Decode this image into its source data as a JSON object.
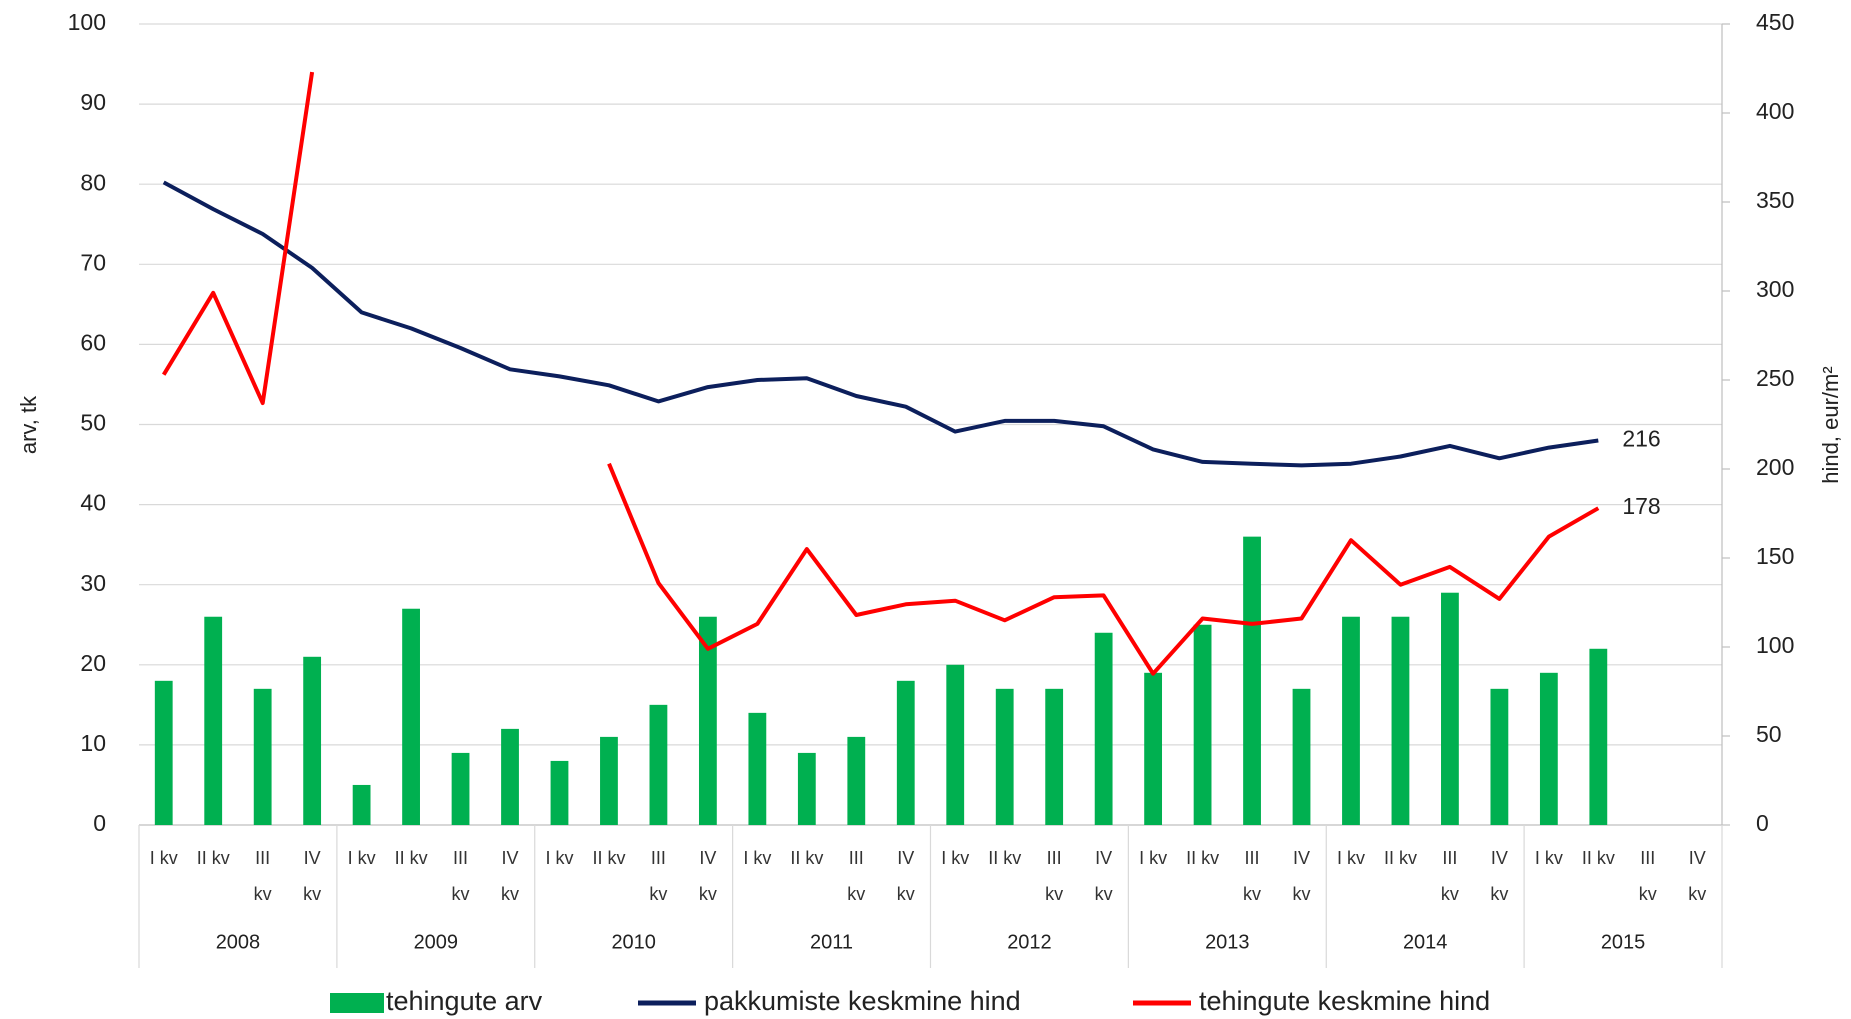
{
  "chart_data": {
    "type": "combo",
    "categories": [
      "I kv",
      "II kv",
      "III kv",
      "IV kv",
      "I kv",
      "II kv",
      "III kv",
      "IV kv",
      "I kv",
      "II kv",
      "III kv",
      "IV kv",
      "I kv",
      "II kv",
      "III kv",
      "IV kv",
      "I kv",
      "II kv",
      "III kv",
      "IV kv",
      "I kv",
      "II kv",
      "III kv",
      "IV kv",
      "I kv",
      "II kv",
      "III kv",
      "IV kv",
      "I kv",
      "II kv",
      "III kv",
      "IV kv"
    ],
    "years": [
      "2008",
      "2009",
      "2010",
      "2011",
      "2012",
      "2013",
      "2014",
      "2015"
    ],
    "y_label": "arv, tk",
    "y2_label": "hind, eur/m²",
    "ylim": [
      0,
      100
    ],
    "yticks": [
      0,
      10,
      20,
      30,
      40,
      50,
      60,
      70,
      80,
      90,
      100
    ],
    "y2lim": [
      0,
      450
    ],
    "y2ticks": [
      0,
      50,
      100,
      150,
      200,
      250,
      300,
      350,
      400,
      450
    ],
    "grid": true,
    "series": [
      {
        "name": "tehingute arv",
        "type": "bar",
        "color": "#00b050",
        "values": [
          18,
          26,
          17,
          21,
          5,
          27,
          9,
          12,
          8,
          11,
          15,
          26,
          14,
          9,
          11,
          18,
          20,
          17,
          17,
          24,
          19,
          25,
          36,
          17,
          26,
          26,
          29,
          17,
          19,
          22,
          null,
          null
        ]
      },
      {
        "name": "pakkumiste keskmine hind",
        "type": "line",
        "axis": "y2",
        "color": "#0c1f5c",
        "values": [
          361,
          346,
          332,
          313,
          288,
          279,
          268,
          256,
          252,
          247,
          238,
          246,
          250,
          251,
          241,
          235,
          221,
          227,
          227,
          224,
          211,
          204,
          203,
          202,
          203,
          207,
          213,
          206,
          212,
          216,
          null,
          null
        ]
      },
      {
        "name": "tehingute keskmine hind",
        "type": "line",
        "axis": "y2",
        "color": "#ff0000",
        "values": [
          253,
          299,
          237,
          423,
          null,
          null,
          null,
          null,
          null,
          203,
          136,
          99,
          113,
          155,
          118,
          124,
          126,
          115,
          128,
          129,
          85,
          116,
          113,
          116,
          160,
          135,
          145,
          127,
          162,
          178,
          null,
          null
        ]
      }
    ]
  }
}
